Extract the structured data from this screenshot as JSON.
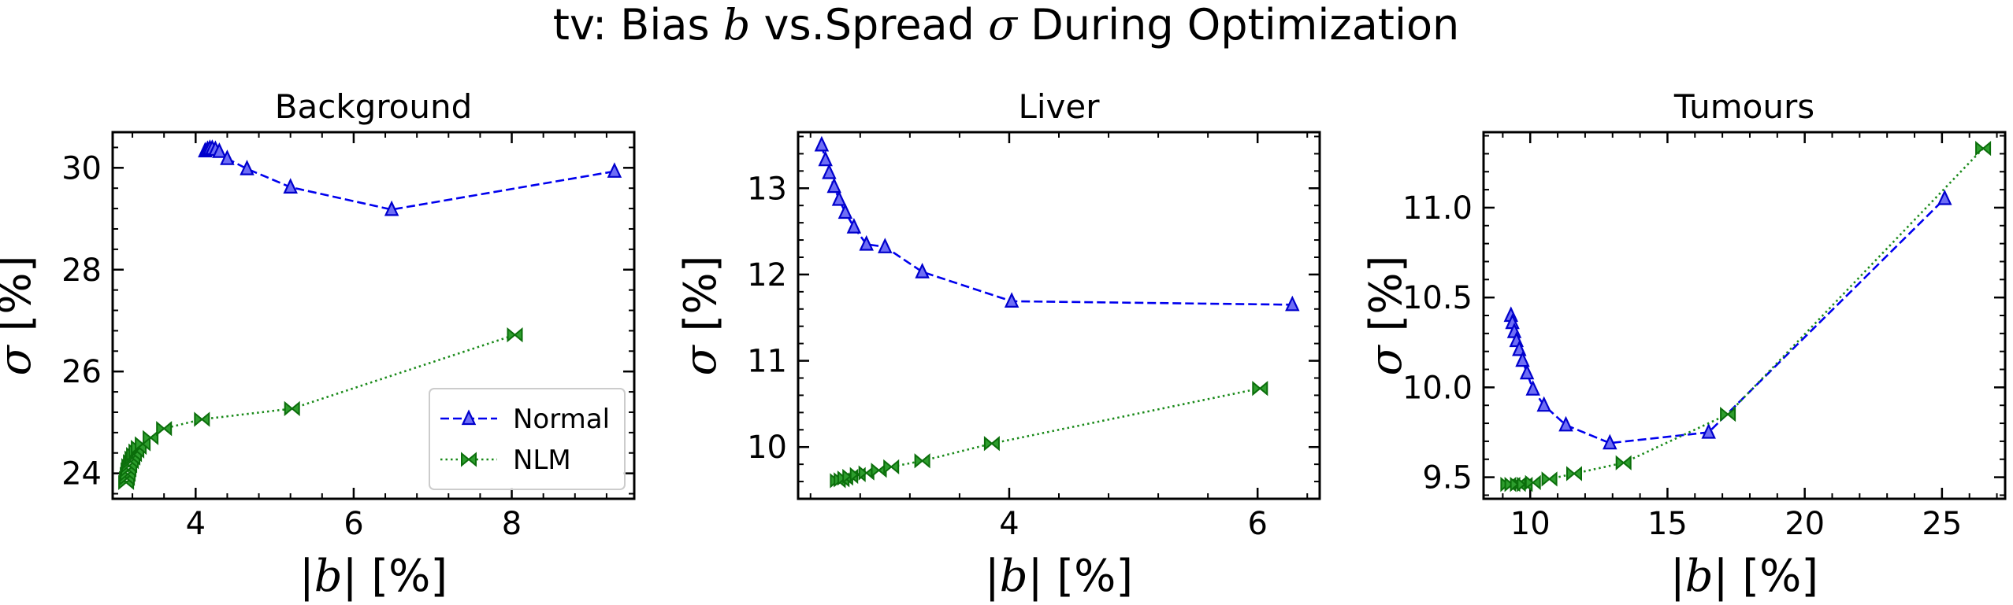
{
  "figure": {
    "title_prefix": "tv: Bias ",
    "title_b": "b",
    "title_mid": " vs.Spread ",
    "title_sigma": "σ",
    "title_suffix": " During Optimization"
  },
  "labels": {
    "x_pipe_open": "|",
    "x_var": "b",
    "x_unit": "| [%]",
    "y_var": "σ",
    "y_unit": " [%]"
  },
  "colors": {
    "normal": "#0000ee",
    "nlm": "#1a8a1a"
  },
  "chart_data": [
    {
      "type": "line",
      "title": "Background",
      "xlim": [
        2.95,
        9.55
      ],
      "ylim": [
        23.5,
        30.7
      ],
      "xticks": [
        4,
        6,
        8
      ],
      "yticks": [
        24,
        26,
        28,
        30
      ],
      "legend": "lower-right",
      "series": [
        {
          "name": "Normal",
          "marker": "tri_up",
          "linestyle": "dashed",
          "x": [
            4.12,
            4.15,
            4.18,
            4.21,
            4.25,
            4.3,
            4.4,
            4.65,
            5.2,
            6.48,
            9.3
          ],
          "y": [
            30.33,
            30.36,
            30.38,
            30.38,
            30.36,
            30.32,
            30.18,
            29.98,
            29.62,
            29.18,
            29.93
          ]
        },
        {
          "name": "NLM",
          "marker": "bowtie",
          "linestyle": "dotted",
          "x": [
            3.12,
            3.13,
            3.14,
            3.15,
            3.16,
            3.18,
            3.2,
            3.22,
            3.25,
            3.28,
            3.33,
            3.43,
            3.6,
            4.08,
            5.22,
            8.04
          ],
          "y": [
            23.82,
            23.9,
            23.98,
            24.07,
            24.15,
            24.23,
            24.3,
            24.37,
            24.44,
            24.51,
            24.58,
            24.7,
            24.88,
            25.06,
            25.27,
            26.72
          ]
        }
      ]
    },
    {
      "type": "line",
      "title": "Liver",
      "xlim": [
        2.3,
        6.5
      ],
      "ylim": [
        9.4,
        13.65
      ],
      "xticks": [
        4,
        6
      ],
      "yticks": [
        10,
        11,
        12,
        13
      ],
      "series": [
        {
          "name": "Normal",
          "marker": "tri_up",
          "linestyle": "dashed",
          "x": [
            2.49,
            2.52,
            2.55,
            2.59,
            2.63,
            2.68,
            2.75,
            2.85,
            3.0,
            3.3,
            4.02,
            6.28
          ],
          "y": [
            13.5,
            13.33,
            13.18,
            13.02,
            12.87,
            12.72,
            12.55,
            12.35,
            12.32,
            12.03,
            11.69,
            11.65
          ]
        },
        {
          "name": "NLM",
          "marker": "bowtie",
          "linestyle": "dotted",
          "x": [
            2.62,
            2.65,
            2.68,
            2.72,
            2.78,
            2.85,
            2.95,
            3.05,
            3.3,
            3.86,
            6.02
          ],
          "y": [
            9.61,
            9.62,
            9.64,
            9.66,
            9.68,
            9.7,
            9.73,
            9.77,
            9.84,
            10.04,
            10.68
          ]
        }
      ]
    },
    {
      "type": "line",
      "title": "Tumours",
      "xlim": [
        8.3,
        27.3
      ],
      "ylim": [
        9.38,
        11.42
      ],
      "xticks": [
        10,
        15,
        20,
        25
      ],
      "yticks": [
        9.5,
        10.0,
        10.5,
        11.0
      ],
      "series": [
        {
          "name": "Normal",
          "marker": "tri_up",
          "linestyle": "dashed",
          "x": [
            9.3,
            9.35,
            9.42,
            9.5,
            9.6,
            9.72,
            9.88,
            10.1,
            10.5,
            11.3,
            12.9,
            16.5,
            25.1
          ],
          "y": [
            10.4,
            10.36,
            10.31,
            10.26,
            10.21,
            10.15,
            10.08,
            9.99,
            9.9,
            9.79,
            9.69,
            9.75,
            11.05
          ]
        },
        {
          "name": "NLM",
          "marker": "bowtie",
          "linestyle": "dotted",
          "x": [
            9.2,
            9.35,
            9.55,
            9.8,
            10.1,
            10.7,
            11.6,
            13.4,
            17.2,
            26.5
          ],
          "y": [
            9.46,
            9.46,
            9.46,
            9.46,
            9.47,
            9.49,
            9.52,
            9.58,
            9.85,
            11.33
          ]
        }
      ]
    }
  ]
}
